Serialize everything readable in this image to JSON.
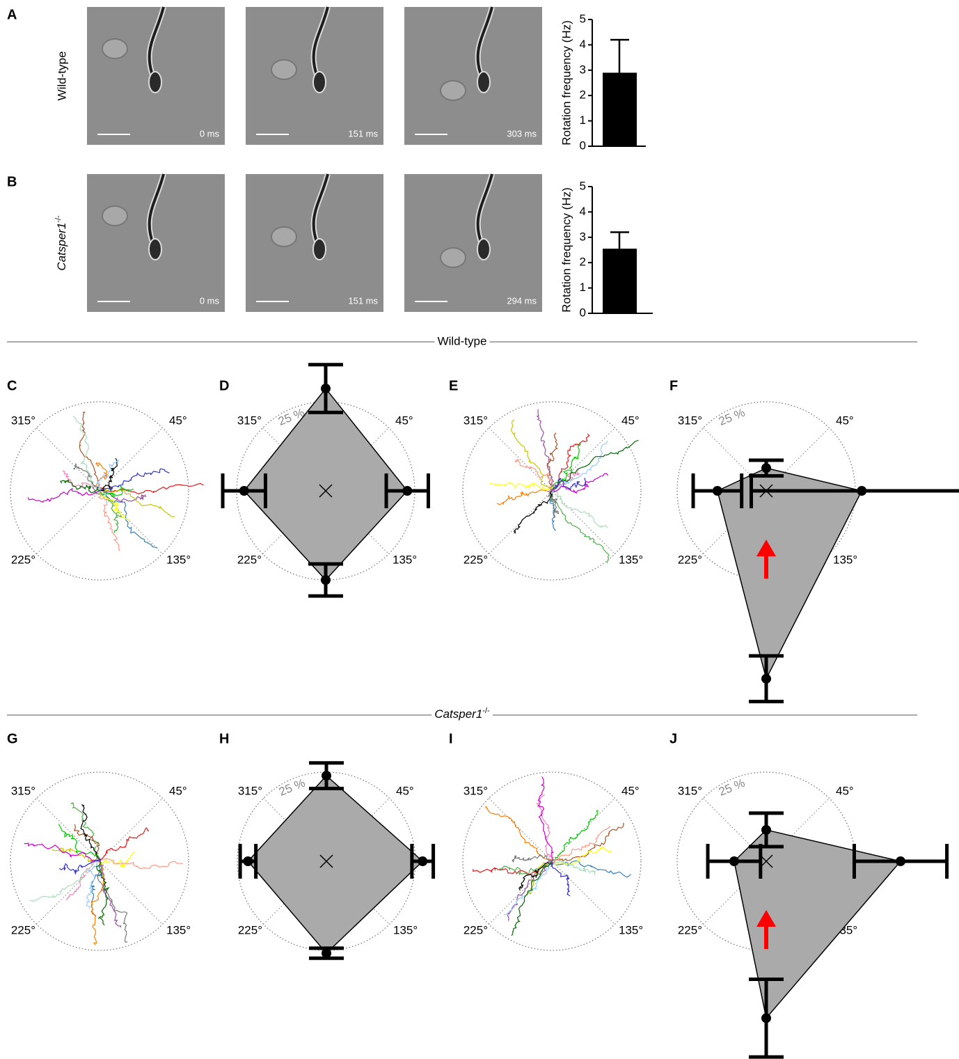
{
  "rows": [
    {
      "label": "A",
      "condition": "Wild-type",
      "frames": [
        "0 ms",
        "151 ms",
        "303 ms"
      ]
    },
    {
      "label": "B",
      "condition": {
        "gene": "Catsper1",
        "sup": "-/-"
      },
      "frames": [
        "0 ms",
        "151 ms",
        "294 ms"
      ]
    }
  ],
  "sections": [
    {
      "title": "Wild-type"
    },
    {
      "title": {
        "gene": "Catsper1",
        "sup": "-/-"
      }
    }
  ],
  "chart_data": [
    {
      "type": "bar",
      "ylabel": "Rotation frequency (Hz)",
      "ylim": [
        0,
        5
      ],
      "yticks": [
        0,
        1,
        2,
        3,
        4,
        5
      ],
      "values": [
        2.9
      ],
      "errors": [
        1.3
      ],
      "color": "#000000"
    },
    {
      "type": "bar",
      "ylabel": "Rotation frequency (Hz)",
      "ylim": [
        0,
        5
      ],
      "yticks": [
        0,
        1,
        2,
        3,
        4,
        5
      ],
      "values": [
        2.55
      ],
      "errors": [
        0.65
      ],
      "color": "#000000"
    },
    {
      "type": "trajectories",
      "label": "C",
      "categories": [
        "315°",
        "45°",
        "225°",
        "135°"
      ]
    },
    {
      "type": "radar",
      "label": "D",
      "categories": [
        "315°",
        "45°",
        "225°",
        "135°"
      ],
      "rlim": [
        0,
        25
      ],
      "rticks": [
        {
          "value": 25,
          "label": "25 %"
        }
      ],
      "values": [
        28.7,
        22.9,
        25,
        22.9
      ],
      "errors": [
        6.7,
        5.9,
        4.5,
        6
      ],
      "color": "#aaaaaa"
    },
    {
      "type": "trajectories",
      "label": "E",
      "categories": [
        "315°",
        "45°",
        "225°",
        "135°"
      ]
    },
    {
      "type": "radar",
      "label": "F",
      "categories": [
        "315°",
        "45°",
        "225°",
        "135°"
      ],
      "rlim": [
        0,
        25
      ],
      "rticks": [
        {
          "value": 25,
          "label": "25 %"
        }
      ],
      "values": [
        6.4,
        26.8,
        52.7,
        13.7
      ],
      "errors": [
        2.2,
        31,
        6.4,
        6.8
      ],
      "color": "#aaaaaa",
      "arrow_color": "#ff0000"
    },
    {
      "type": "trajectories",
      "label": "G",
      "categories": [
        "315°",
        "45°",
        "225°",
        "135°"
      ]
    },
    {
      "type": "radar",
      "label": "H",
      "categories": [
        "315°",
        "45°",
        "225°",
        "135°"
      ],
      "rlim": [
        0,
        25
      ],
      "rticks": [
        {
          "value": 25,
          "label": "25 %"
        }
      ],
      "values": [
        24,
        27,
        25.8,
        22
      ],
      "errors": [
        3.6,
        3,
        1.4,
        2.2
      ],
      "color": "#aaaaaa"
    },
    {
      "type": "trajectories",
      "label": "I",
      "categories": [
        "315°",
        "45°",
        "225°",
        "135°"
      ]
    },
    {
      "type": "radar",
      "label": "J",
      "categories": [
        "315°",
        "45°",
        "225°",
        "135°"
      ],
      "rlim": [
        0,
        25
      ],
      "rticks": [
        {
          "value": 25,
          "label": "25 %"
        }
      ],
      "values": [
        8.8,
        37.7,
        44,
        9
      ],
      "errors": [
        4.7,
        13,
        10.9,
        7.4
      ],
      "color": "#aaaaaa",
      "arrow_color": "#ff0000"
    }
  ]
}
